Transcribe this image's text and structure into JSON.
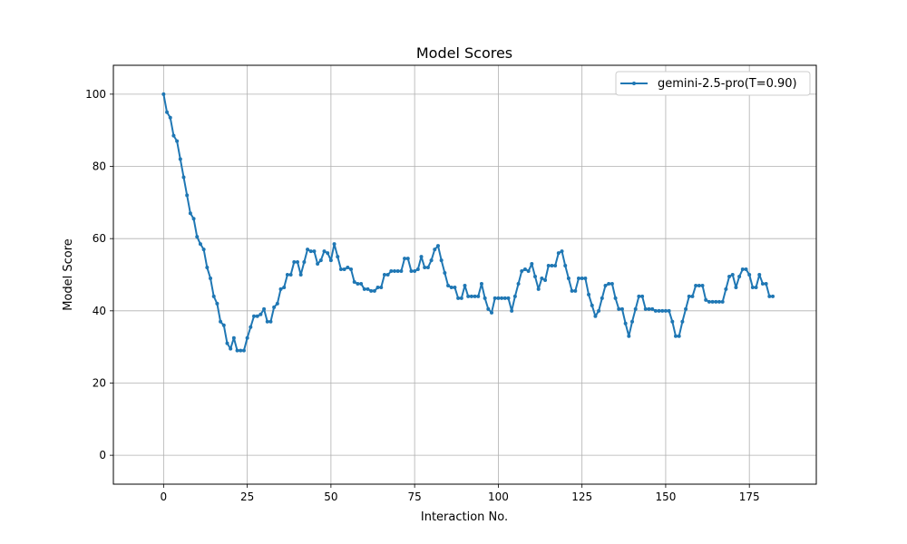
{
  "chart_data": {
    "type": "line",
    "title": "Model Scores",
    "xlabel": "Interaction No.",
    "ylabel": "Model Score",
    "xlim": [
      -15,
      195
    ],
    "ylim": [
      -8,
      108
    ],
    "x_ticks": [
      0,
      25,
      50,
      75,
      100,
      125,
      150,
      175
    ],
    "y_ticks": [
      0,
      20,
      40,
      60,
      80,
      100
    ],
    "grid": true,
    "legend_position": "top-right",
    "series": [
      {
        "name": "gemini-2.5-pro(T=0.90)",
        "color": "#1f77b4",
        "marker": "circle",
        "values": [
          100,
          95,
          93.5,
          88.5,
          87,
          82,
          77,
          72,
          67,
          65.5,
          60.5,
          58.5,
          57,
          52,
          49,
          44,
          42,
          37,
          36,
          31,
          29.5,
          32.5,
          29,
          29,
          29,
          32.5,
          35.5,
          38.5,
          38.5,
          39,
          40.5,
          37,
          37,
          41,
          42,
          46,
          46.5,
          50,
          50,
          53.5,
          53.5,
          50,
          53.5,
          57,
          56.5,
          56.5,
          53,
          54,
          56.5,
          56,
          54,
          58.5,
          55,
          51.5,
          51.5,
          52,
          51.5,
          48,
          47.5,
          47.5,
          46,
          46,
          45.5,
          45.5,
          46.5,
          46.5,
          50,
          50,
          51,
          51,
          51,
          51,
          54.5,
          54.5,
          51,
          51,
          51.5,
          55,
          52,
          52,
          54,
          57,
          58,
          54,
          50.5,
          47,
          46.5,
          46.5,
          43.5,
          43.5,
          47,
          44,
          44,
          44,
          44,
          47.5,
          43.5,
          40.5,
          39.5,
          43.5,
          43.5,
          43.5,
          43.5,
          43.5,
          40,
          44,
          47.5,
          51,
          51.5,
          51,
          53,
          49.5,
          46,
          49,
          48.5,
          52.5,
          52.5,
          52.5,
          56,
          56.5,
          52.5,
          49,
          45.5,
          45.5,
          49,
          49,
          49,
          44.5,
          41.5,
          38.5,
          40,
          43.5,
          47,
          47.5,
          47.5,
          43.5,
          40.5,
          40.5,
          36.5,
          33,
          37,
          40.5,
          44,
          44,
          40.5,
          40.5,
          40.5,
          40,
          40,
          40,
          40,
          40,
          37,
          33,
          33,
          37,
          40.5,
          44,
          44,
          47,
          47,
          47,
          43,
          42.5,
          42.5,
          42.5,
          42.5,
          42.5,
          46,
          49.5,
          50,
          46.5,
          49.5,
          51.5,
          51.5,
          50,
          46.5,
          46.5,
          50,
          47.5,
          47.5,
          44,
          44
        ]
      }
    ]
  }
}
